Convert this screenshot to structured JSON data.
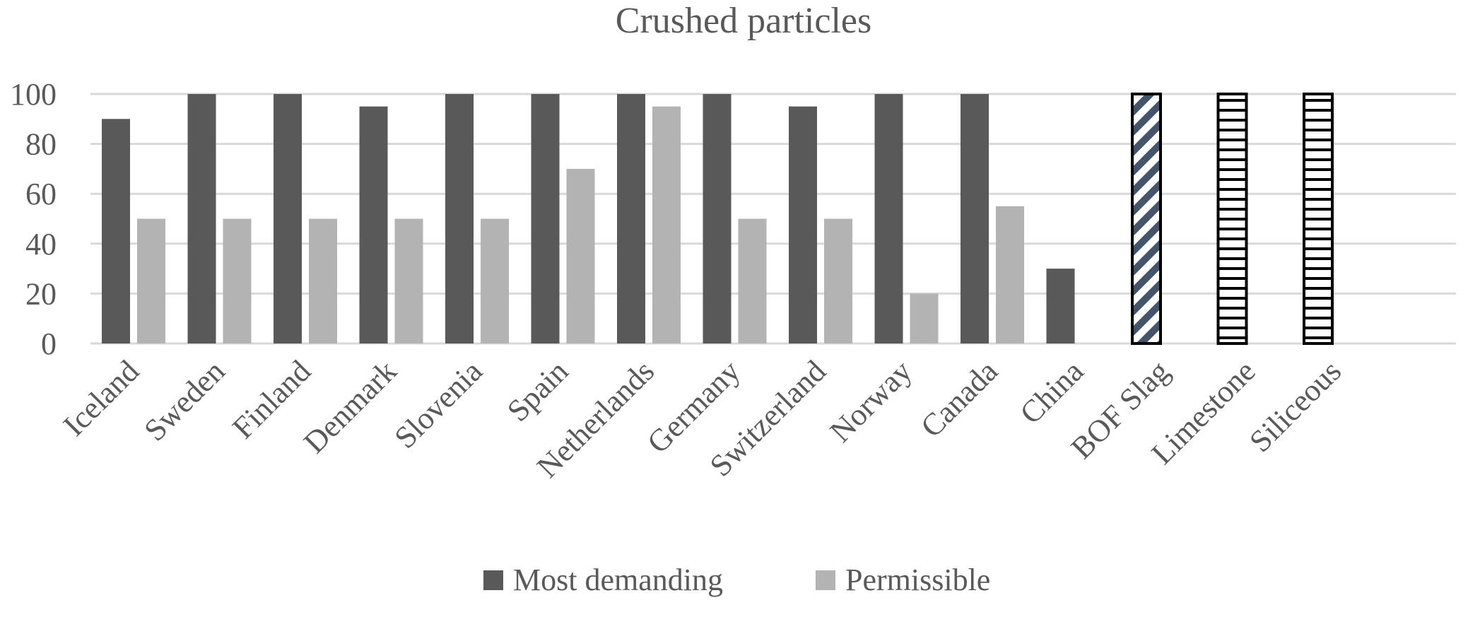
{
  "chart_data": {
    "type": "bar",
    "title": "Crushed particles",
    "xlabel": "",
    "ylabel": "",
    "ylim": [
      0,
      100
    ],
    "yticks": [
      0,
      20,
      40,
      60,
      80,
      100
    ],
    "grid": true,
    "legend_position": "bottom",
    "categories": [
      "Iceland",
      "Sweden",
      "Finland",
      "Denmark",
      "Slovenia",
      "Spain",
      "Netherlands",
      "Germany",
      "Switzerland",
      "Norway",
      "Canada",
      "China",
      "BOF Slag",
      "Limestone",
      "Siliceous"
    ],
    "series": [
      {
        "name": "Most demanding",
        "color": "#595959",
        "values": [
          90,
          100,
          100,
          95,
          100,
          100,
          100,
          100,
          95,
          100,
          100,
          30,
          null,
          null,
          null
        ]
      },
      {
        "name": "Permissible",
        "color": "#b3b3b3",
        "values": [
          50,
          50,
          50,
          50,
          50,
          70,
          95,
          50,
          50,
          20,
          55,
          null,
          null,
          null,
          null
        ]
      }
    ],
    "material_bars": [
      {
        "category": "BOF Slag",
        "value": 100,
        "pattern": "diagonal-hatch",
        "color": "#44546a"
      },
      {
        "category": "Limestone",
        "value": 100,
        "pattern": "horizontal-hatch",
        "color": "#000000"
      },
      {
        "category": "Siliceous",
        "value": 100,
        "pattern": "horizontal-hatch",
        "color": "#000000"
      }
    ]
  }
}
